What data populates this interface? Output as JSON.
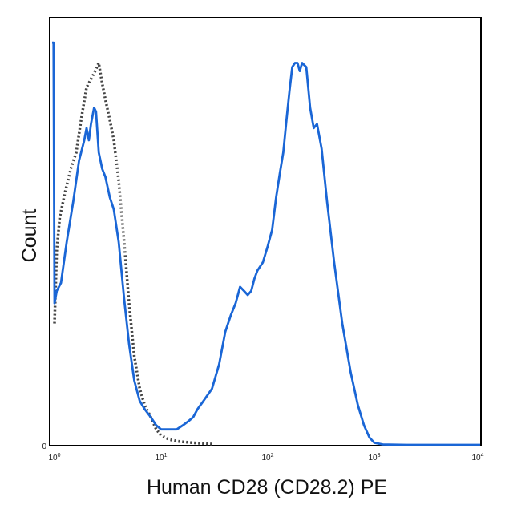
{
  "chart_data": {
    "type": "line",
    "title": "",
    "xlabel": "Human CD28 (CD28.2) PE",
    "ylabel": "Count",
    "x_scale": "log",
    "xlim": [
      1,
      10000
    ],
    "ylim": [
      0,
      100
    ],
    "y_tick_labels": [
      {
        "value": 0,
        "label": "0"
      }
    ],
    "x_ticks": [
      {
        "value": 1,
        "base": "10",
        "exp": "0"
      },
      {
        "value": 10,
        "base": "10",
        "exp": "1"
      },
      {
        "value": 100,
        "base": "10",
        "exp": "2"
      },
      {
        "value": 1000,
        "base": "10",
        "exp": "3"
      },
      {
        "value": 10000,
        "base": "10",
        "exp": "4"
      }
    ],
    "grid": false,
    "legend": "none",
    "series": [
      {
        "style": "dotted",
        "color": "#444444",
        "points": [
          [
            1.0,
            30
          ],
          [
            1.05,
            48
          ],
          [
            1.12,
            56
          ],
          [
            1.25,
            62
          ],
          [
            1.42,
            68
          ],
          [
            1.6,
            72
          ],
          [
            1.8,
            81
          ],
          [
            2.0,
            88
          ],
          [
            2.2,
            90
          ],
          [
            2.4,
            92
          ],
          [
            2.6,
            94
          ],
          [
            2.8,
            89
          ],
          [
            3.0,
            85
          ],
          [
            3.3,
            80
          ],
          [
            3.6,
            75
          ],
          [
            4.0,
            65
          ],
          [
            4.5,
            50
          ],
          [
            5.0,
            35
          ],
          [
            5.6,
            22
          ],
          [
            6.3,
            14
          ],
          [
            7.0,
            10
          ],
          [
            8.0,
            7
          ],
          [
            9.0,
            4
          ],
          [
            10,
            2.5
          ],
          [
            12,
            1.5
          ],
          [
            15,
            1
          ],
          [
            20,
            0.7
          ],
          [
            30,
            0.4
          ]
        ]
      },
      {
        "style": "solid",
        "color": "#1a66d6",
        "points": [
          [
            0.95,
            99
          ],
          [
            0.98,
            99
          ],
          [
            1.0,
            35
          ],
          [
            1.05,
            38
          ],
          [
            1.15,
            40
          ],
          [
            1.3,
            50
          ],
          [
            1.5,
            60
          ],
          [
            1.7,
            70
          ],
          [
            1.9,
            75
          ],
          [
            2.0,
            78
          ],
          [
            2.1,
            75
          ],
          [
            2.2,
            79
          ],
          [
            2.35,
            83
          ],
          [
            2.45,
            82
          ],
          [
            2.6,
            72
          ],
          [
            2.8,
            68
          ],
          [
            3.0,
            66
          ],
          [
            3.3,
            61
          ],
          [
            3.6,
            58
          ],
          [
            4.0,
            50
          ],
          [
            4.5,
            36
          ],
          [
            5.0,
            25
          ],
          [
            5.6,
            16
          ],
          [
            6.3,
            11
          ],
          [
            7.0,
            9
          ],
          [
            8.0,
            7
          ],
          [
            9.0,
            5
          ],
          [
            10,
            4
          ],
          [
            12,
            4
          ],
          [
            14,
            4
          ],
          [
            16,
            5
          ],
          [
            18,
            6
          ],
          [
            20,
            7
          ],
          [
            22,
            9
          ],
          [
            25,
            11
          ],
          [
            30,
            14
          ],
          [
            35,
            20
          ],
          [
            40,
            28
          ],
          [
            45,
            32
          ],
          [
            50,
            35
          ],
          [
            55,
            39
          ],
          [
            60,
            38
          ],
          [
            65,
            37
          ],
          [
            70,
            38
          ],
          [
            75,
            41
          ],
          [
            80,
            43
          ],
          [
            90,
            45
          ],
          [
            100,
            49
          ],
          [
            110,
            53
          ],
          [
            120,
            61
          ],
          [
            130,
            67
          ],
          [
            140,
            72
          ],
          [
            150,
            80
          ],
          [
            160,
            87
          ],
          [
            170,
            93
          ],
          [
            180,
            94
          ],
          [
            190,
            94
          ],
          [
            200,
            92
          ],
          [
            210,
            94
          ],
          [
            230,
            93
          ],
          [
            250,
            83
          ],
          [
            270,
            78
          ],
          [
            290,
            79
          ],
          [
            320,
            73
          ],
          [
            360,
            60
          ],
          [
            420,
            45
          ],
          [
            500,
            30
          ],
          [
            600,
            18
          ],
          [
            700,
            10
          ],
          [
            800,
            5
          ],
          [
            900,
            2
          ],
          [
            1000,
            0.7
          ],
          [
            1200,
            0.3
          ],
          [
            2000,
            0.2
          ],
          [
            5000,
            0.2
          ],
          [
            10000,
            0.2
          ]
        ]
      }
    ]
  }
}
